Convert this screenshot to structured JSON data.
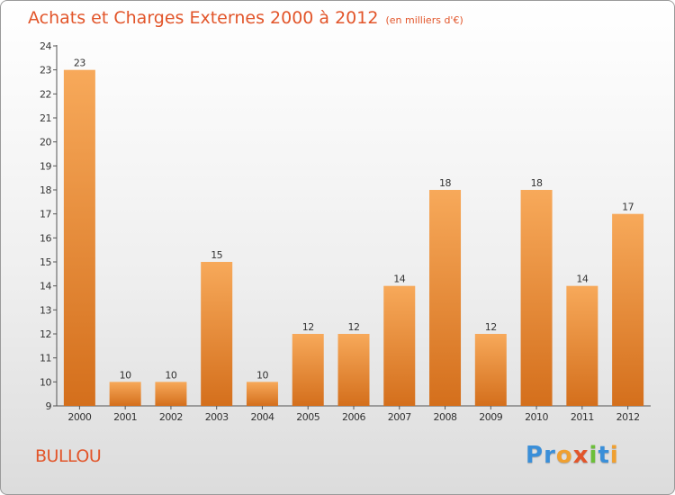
{
  "header": {
    "title": "Achats et Charges Externes 2000 à 2012",
    "subtitle": "(en milliers d'€)"
  },
  "commune": "BULLOU",
  "logo": {
    "letters": [
      {
        "char": "P",
        "color": "#3a8fd9"
      },
      {
        "char": "r",
        "color": "#3a8fd9"
      },
      {
        "char": "o",
        "color": "#f0a030"
      },
      {
        "char": "x",
        "color": "#e2552a"
      },
      {
        "char": "i",
        "color": "#6cbf3a"
      },
      {
        "char": "t",
        "color": "#3a8fd9"
      },
      {
        "char": "i",
        "color": "#f0a030"
      }
    ]
  },
  "chart_data": {
    "type": "bar",
    "title": "Achats et Charges Externes 2000 à 2012",
    "xlabel": "",
    "ylabel": "",
    "categories": [
      "2000",
      "2001",
      "2002",
      "2003",
      "2004",
      "2005",
      "2006",
      "2007",
      "2008",
      "2009",
      "2010",
      "2011",
      "2012"
    ],
    "values": [
      23,
      10,
      10,
      15,
      10,
      12,
      12,
      14,
      18,
      12,
      18,
      14,
      17
    ],
    "ylim": [
      9,
      24
    ],
    "yticks": [
      9,
      10,
      11,
      12,
      13,
      14,
      15,
      16,
      17,
      18,
      19,
      20,
      21,
      22,
      23,
      24
    ],
    "grid": false,
    "bar_color_top": "#f7a95a",
    "bar_color_bottom": "#d46f1c",
    "axis_color": "#555555"
  }
}
